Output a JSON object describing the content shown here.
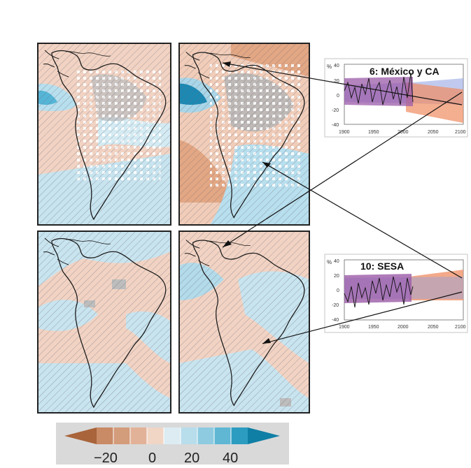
{
  "insets": [
    {
      "title": "6: México y CA",
      "y_unit": "%",
      "y_ticks": [
        "40",
        "20",
        "0",
        "-20",
        "-40"
      ],
      "x_ticks": [
        "1900",
        "1950",
        "2000",
        "2050",
        "2100"
      ]
    },
    {
      "title": "10: SESA",
      "y_unit": "%",
      "y_ticks": [
        "40",
        "20",
        "0",
        "-20",
        "-40"
      ],
      "x_ticks": [
        "1900",
        "1950",
        "2000",
        "2050",
        "2100"
      ]
    }
  ],
  "colorbar": {
    "tick_labels": [
      "−20",
      "0",
      "20",
      "40"
    ],
    "colors": [
      "#a9643b",
      "#c98a66",
      "#dba489",
      "#e8bfa8",
      "#f3ddd0",
      "#dcecf2",
      "#b6dceb",
      "#8ccbe0",
      "#5db6d3",
      "#2d9cc1",
      "#0f7fa6"
    ]
  },
  "colors": {
    "dry": "#f0cbb8",
    "wet": "#bfe0ec",
    "strong_wet": "#3aa4c8",
    "grey": "#b5b5b5",
    "purple": "#8b5aa7",
    "orange": "#ee8d66",
    "blue_band": "#8e9fe0"
  }
}
